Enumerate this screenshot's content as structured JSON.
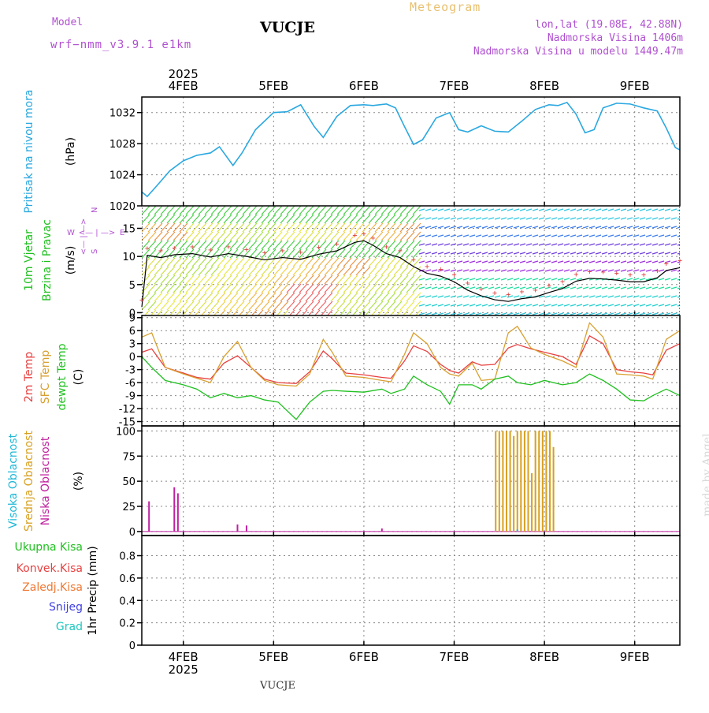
{
  "header": {
    "model_label": "Model",
    "model_name": "wrf−nmm_v3.9.1  e1km",
    "station": "VUCJE",
    "title": "Meteogram",
    "lonlat": "lon,lat (19.08E, 42.88N)",
    "elevation": "Nadmorska Visina 1406m",
    "elevation_model": "Nadmorska Visina u modelu 1449.47m"
  },
  "footer": {
    "station": "VUCJE",
    "credit": "made by Angel"
  },
  "colors": {
    "pressure": "#2aa8e0",
    "temp": "#e84040",
    "sfc_temp": "#d8a030",
    "dewpt": "#20c020",
    "high_cloud": "#20b8d8",
    "mid_cloud": "#d8a020",
    "low_cloud": "#c020a0",
    "total_precip": "#20c020",
    "conv_precip": "#e84040",
    "freezing": "#f07830",
    "snow": "#4040e0",
    "hail": "#20c8c0",
    "label_purple": "#b050d0"
  },
  "chart_data": [
    {
      "type": "line",
      "panel": "pressure",
      "ylabel": [
        "Pritisak na nivou mora",
        "(hPa)"
      ],
      "ylim": [
        1020,
        1034
      ],
      "yticks": [
        1020,
        1024,
        1028,
        1032
      ],
      "x_ticks": [
        "4FEB",
        "5FEB",
        "6FEB",
        "7FEB",
        "8FEB",
        "9FEB"
      ],
      "x_year": "2025",
      "x_range_days": [
        3.54,
        9.5
      ],
      "series": [
        {
          "x": [
            3.54,
            3.6,
            3.7,
            3.85,
            4.0,
            4.15,
            4.3,
            4.4,
            4.55,
            4.65,
            4.8,
            5.0,
            5.15,
            5.3,
            5.45,
            5.55,
            5.7,
            5.85,
            6.0,
            6.1,
            6.25,
            6.35,
            6.45,
            6.55,
            6.65,
            6.8,
            6.95,
            7.05,
            7.15,
            7.3,
            7.45,
            7.6,
            7.75,
            7.9,
            8.05,
            8.15,
            8.25,
            8.35,
            8.45,
            8.55,
            8.65,
            8.8,
            8.95,
            9.1,
            9.25,
            9.35,
            9.45,
            9.5
          ],
          "y": [
            1021.8,
            1021.2,
            1022.5,
            1024.5,
            1025.8,
            1026.5,
            1026.8,
            1027.6,
            1025.2,
            1026.8,
            1029.8,
            1032.0,
            1032.1,
            1033.0,
            1030.2,
            1028.8,
            1031.5,
            1032.9,
            1033.0,
            1032.9,
            1033.1,
            1032.6,
            1030.2,
            1027.9,
            1028.5,
            1031.3,
            1032.0,
            1029.8,
            1029.5,
            1030.3,
            1029.6,
            1029.5,
            1030.9,
            1032.4,
            1033.0,
            1032.9,
            1033.3,
            1031.8,
            1029.4,
            1029.8,
            1032.6,
            1033.2,
            1033.1,
            1032.6,
            1032.2,
            1030.0,
            1027.5,
            1027.2
          ]
        }
      ]
    },
    {
      "type": "scatter",
      "panel": "wind",
      "ylabel": [
        "10m Vjetar",
        "Brzina i Pravac",
        "(m/s)"
      ],
      "compass": [
        "N",
        "W",
        "E",
        "S"
      ],
      "ylim": [
        -0.5,
        19
      ],
      "yticks": [
        0,
        5,
        10,
        15
      ],
      "series": [
        {
          "name": "wind_speed",
          "x": [
            3.54,
            3.6,
            3.75,
            3.9,
            4.1,
            4.3,
            4.5,
            4.7,
            4.9,
            5.1,
            5.3,
            5.5,
            5.7,
            5.9,
            6.0,
            6.1,
            6.25,
            6.4,
            6.55,
            6.7,
            6.85,
            7.0,
            7.15,
            7.3,
            7.45,
            7.6,
            7.75,
            7.9,
            8.05,
            8.2,
            8.35,
            8.5,
            8.65,
            8.8,
            8.95,
            9.1,
            9.25,
            9.35,
            9.5
          ],
          "y": [
            1.0,
            10.2,
            9.8,
            10.3,
            10.5,
            9.9,
            10.5,
            10.0,
            9.4,
            9.8,
            9.5,
            10.4,
            11.0,
            12.5,
            12.8,
            12.0,
            10.5,
            9.8,
            8.2,
            7.0,
            6.5,
            5.5,
            4.0,
            3.0,
            2.3,
            2.0,
            2.5,
            2.8,
            3.6,
            4.3,
            5.6,
            6.1,
            6.0,
            5.8,
            5.5,
            5.5,
            6.2,
            7.5,
            8.0
          ]
        }
      ]
    },
    {
      "type": "line",
      "panel": "temperature",
      "ylabel": [
        "2m Temp",
        "SFC Temp",
        "dewpt Temp",
        "(C)"
      ],
      "ylim": [
        -16,
        9.5
      ],
      "yticks": [
        -15,
        -12,
        -9,
        -6,
        -3,
        0,
        3,
        6,
        9
      ],
      "x": [
        3.54,
        3.65,
        3.8,
        4.0,
        4.15,
        4.3,
        4.45,
        4.6,
        4.75,
        4.9,
        5.05,
        5.25,
        5.4,
        5.55,
        5.65,
        5.8,
        6.0,
        6.2,
        6.3,
        6.45,
        6.55,
        6.7,
        6.85,
        6.95,
        7.05,
        7.2,
        7.3,
        7.45,
        7.6,
        7.7,
        7.85,
        8.0,
        8.2,
        8.35,
        8.5,
        8.65,
        8.8,
        8.95,
        9.1,
        9.2,
        9.35,
        9.5
      ],
      "series": [
        {
          "name": "2m Temp",
          "y": [
            1.0,
            1.8,
            -2.5,
            -3.8,
            -4.8,
            -5.2,
            -1.5,
            0.2,
            -2.5,
            -5.2,
            -6.0,
            -6.2,
            -3.5,
            1.3,
            -0.5,
            -3.8,
            -4.2,
            -4.8,
            -5.0,
            -1.0,
            2.5,
            1.2,
            -1.8,
            -3.2,
            -3.8,
            -1.2,
            -2.0,
            -1.8,
            2.0,
            2.8,
            1.8,
            1.0,
            0.0,
            -1.8,
            4.8,
            3.0,
            -3.0,
            -3.5,
            -3.8,
            -4.2,
            1.5,
            3.0
          ]
        },
        {
          "name": "SFC Temp",
          "y": [
            4.5,
            5.5,
            -2.5,
            -4.0,
            -5.0,
            -6.0,
            0.0,
            3.5,
            -2.5,
            -5.5,
            -6.5,
            -6.8,
            -4.0,
            4.0,
            1.0,
            -4.5,
            -4.8,
            -5.5,
            -5.8,
            0.5,
            5.5,
            3.0,
            -2.5,
            -4.0,
            -4.5,
            -1.5,
            -5.5,
            -5.2,
            5.5,
            7.0,
            2.0,
            0.5,
            -1.0,
            -2.5,
            7.8,
            4.5,
            -4.0,
            -4.2,
            -4.5,
            -5.2,
            4.0,
            6.0
          ]
        },
        {
          "name": "dewpt Temp",
          "y": [
            0.0,
            -2.5,
            -5.5,
            -6.5,
            -7.5,
            -9.5,
            -8.5,
            -9.5,
            -9.0,
            -10.0,
            -10.5,
            -14.5,
            -10.5,
            -8.0,
            -7.8,
            -8.0,
            -8.2,
            -7.5,
            -8.5,
            -7.5,
            -4.5,
            -6.5,
            -8.0,
            -11.0,
            -6.5,
            -6.5,
            -7.5,
            -5.2,
            -4.5,
            -6.0,
            -6.5,
            -5.5,
            -6.5,
            -6.0,
            -4.0,
            -5.5,
            -7.5,
            -10.0,
            -10.2,
            -9.0,
            -7.5,
            -9.0
          ]
        }
      ]
    },
    {
      "type": "bar",
      "panel": "cloud",
      "ylabel": [
        "Visoka Oblacnost",
        "Srednja Oblacnost",
        "Niska Oblacnost",
        "(%)"
      ],
      "ylim": [
        -4,
        105
      ],
      "yticks": [
        0,
        25,
        50,
        75,
        100
      ],
      "series": [
        {
          "name": "Niska Oblacnost",
          "x": [
            3.62,
            3.9,
            3.94,
            4.6,
            4.7,
            6.2
          ],
          "values": [
            30,
            44,
            38,
            7,
            6,
            3
          ]
        },
        {
          "name": "Srednja Oblacnost",
          "x": [
            7.46,
            7.5,
            7.54,
            7.58,
            7.62,
            7.66,
            7.7,
            7.74,
            7.78,
            7.82,
            7.86,
            7.9,
            7.94,
            7.98,
            8.02,
            8.06,
            8.1
          ],
          "values": [
            100,
            100,
            100,
            100,
            100,
            95,
            100,
            100,
            100,
            100,
            58,
            100,
            100,
            100,
            100,
            100,
            84
          ]
        },
        {
          "name": "Visoka Oblacnost",
          "x": [
            7.7
          ],
          "values": [
            2
          ]
        }
      ]
    },
    {
      "type": "bar",
      "panel": "precip",
      "ylabel": [
        "1hr Precip (mm)"
      ],
      "legend": [
        "Ukupna Kisa",
        "Konvek.Kisa",
        "Zaledj.Kisa",
        "Snijeg",
        "Grad"
      ],
      "ylim": [
        0,
        0.98
      ],
      "yticks": [
        0,
        0.2,
        0.4,
        0.6,
        0.8
      ],
      "yticklabels": [
        "0",
        "0.2",
        "0.4",
        "0.6",
        "0.8"
      ],
      "series": [
        {
          "name": "Ukupna Kisa",
          "x": [],
          "values": []
        }
      ]
    }
  ]
}
